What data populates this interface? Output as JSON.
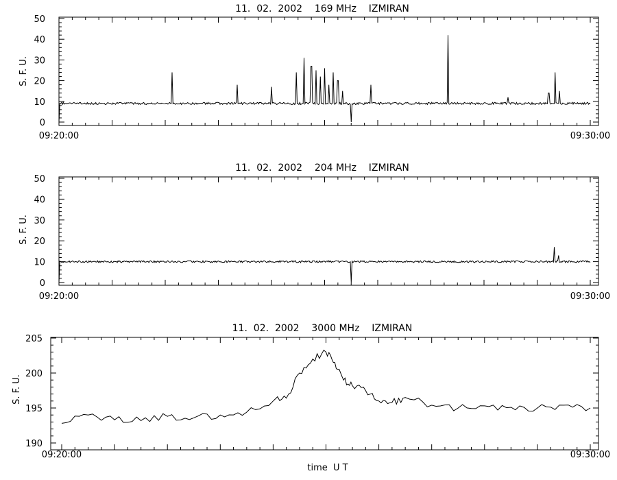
{
  "chart_data": [
    {
      "type": "line",
      "title": "11.  02.  2002    169 MHz    IZMIRAN",
      "ylabel": "S. F. U.",
      "xlabel": "",
      "xlim": [
        "09:20:00",
        "09:30:00"
      ],
      "x_tick_labels": [
        "09:20:00",
        "09:30:00"
      ],
      "ylim": [
        0,
        50
      ],
      "y_ticks": [
        0,
        10,
        20,
        30,
        40,
        50
      ],
      "grid": false,
      "baseline": 9,
      "events": [
        {
          "t": "09:20:00",
          "value": 0,
          "kind": "drop"
        },
        {
          "t": "09:22:08",
          "value": 24,
          "kind": "spike"
        },
        {
          "t": "09:23:21",
          "value": 18,
          "kind": "spike"
        },
        {
          "t": "09:24:00",
          "value": 17,
          "kind": "spike"
        },
        {
          "t": "09:24:28",
          "value": 24,
          "kind": "spike"
        },
        {
          "t": "09:24:37",
          "value": 31,
          "kind": "spike"
        },
        {
          "t": "09:24:45",
          "value": 27,
          "kind": "spike"
        },
        {
          "t": "09:24:50",
          "value": 25,
          "kind": "spike"
        },
        {
          "t": "09:24:55",
          "value": 22,
          "kind": "spike"
        },
        {
          "t": "09:25:00",
          "value": 26,
          "kind": "spike"
        },
        {
          "t": "09:25:05",
          "value": 18,
          "kind": "spike"
        },
        {
          "t": "09:25:10",
          "value": 24,
          "kind": "spike"
        },
        {
          "t": "09:25:15",
          "value": 20,
          "kind": "spike"
        },
        {
          "t": "09:25:20",
          "value": 15,
          "kind": "spike"
        },
        {
          "t": "09:25:30",
          "value": 0,
          "kind": "drop"
        },
        {
          "t": "09:25:52",
          "value": 18,
          "kind": "spike"
        },
        {
          "t": "09:27:19",
          "value": 42,
          "kind": "spike"
        },
        {
          "t": "09:28:27",
          "value": 12,
          "kind": "spike"
        },
        {
          "t": "09:29:13",
          "value": 14,
          "kind": "spike"
        },
        {
          "t": "09:29:20",
          "value": 24,
          "kind": "spike"
        },
        {
          "t": "09:29:25",
          "value": 15,
          "kind": "spike"
        }
      ]
    },
    {
      "type": "line",
      "title": "11.  02.  2002    204 MHz    IZMIRAN",
      "ylabel": "S. F. U.",
      "xlabel": "",
      "xlim": [
        "09:20:00",
        "09:30:00"
      ],
      "x_tick_labels": [
        "09:20:00",
        "09:30:00"
      ],
      "ylim": [
        0,
        50
      ],
      "y_ticks": [
        0,
        10,
        20,
        30,
        40,
        50
      ],
      "grid": false,
      "baseline": 10,
      "events": [
        {
          "t": "09:20:00",
          "value": 0,
          "kind": "drop"
        },
        {
          "t": "09:25:30",
          "value": 0,
          "kind": "drop"
        },
        {
          "t": "09:29:19",
          "value": 17,
          "kind": "spike"
        },
        {
          "t": "09:29:24",
          "value": 13,
          "kind": "spike"
        }
      ]
    },
    {
      "type": "line",
      "title": "11.  02.  2002    3000 MHz    IZMIRAN",
      "ylabel": "S. F. U.",
      "xlabel": "time  U T",
      "xlim": [
        "09:20:00",
        "09:30:00"
      ],
      "x_tick_labels": [
        "09:20:00",
        "09:30:00"
      ],
      "ylim": [
        190,
        205
      ],
      "y_ticks": [
        190,
        195,
        200,
        205
      ],
      "grid": false,
      "x": [
        "09:20:00",
        "09:20:30",
        "09:21:00",
        "09:21:30",
        "09:22:00",
        "09:22:30",
        "09:23:00",
        "09:23:30",
        "09:24:00",
        "09:24:15",
        "09:24:30",
        "09:24:45",
        "09:25:00",
        "09:25:10",
        "09:25:20",
        "09:25:30",
        "09:25:45",
        "09:26:00",
        "09:26:15",
        "09:26:30",
        "09:27:00",
        "09:27:30",
        "09:28:00",
        "09:28:30",
        "09:29:00",
        "09:29:30",
        "09:30:00"
      ],
      "values": [
        192.8,
        194.0,
        193.3,
        193.2,
        193.8,
        193.6,
        194.0,
        194.4,
        196.0,
        196.4,
        200.0,
        202.0,
        203.0,
        201.5,
        199.0,
        198.2,
        197.5,
        196.0,
        195.8,
        196.5,
        195.4,
        195.0,
        195.3,
        195.1,
        195.0,
        195.4,
        195.0
      ]
    }
  ]
}
